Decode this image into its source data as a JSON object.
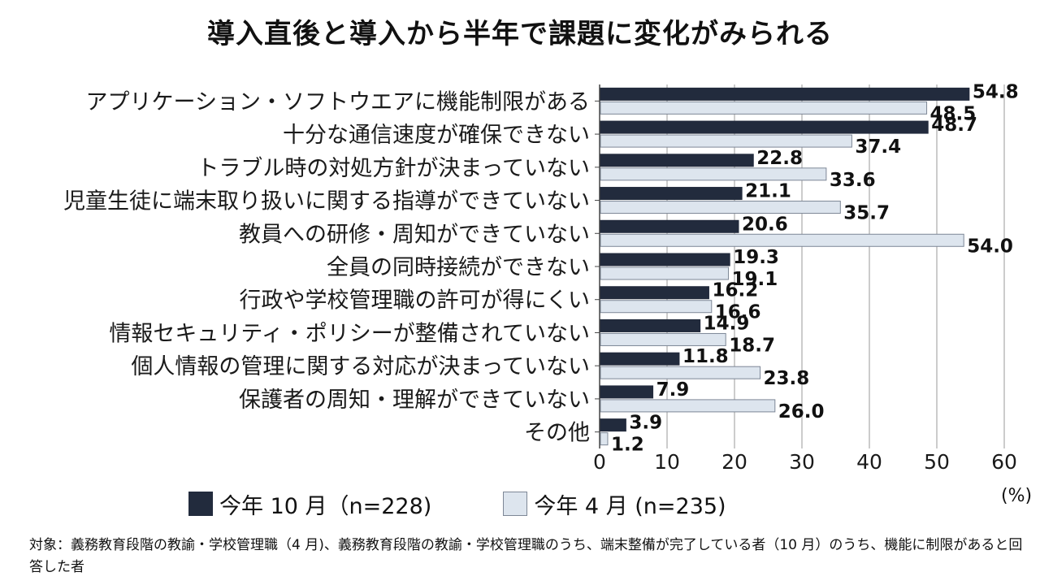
{
  "title": "導入直後と導入から半年で課題に変化がみられる",
  "chart_data": {
    "type": "bar",
    "orientation": "horizontal",
    "categories": [
      "アプリケーション・ソフトウエアに機能制限がある",
      "十分な通信速度が確保できない",
      "トラブル時の対処方針が決まっていない",
      "児童生徒に端末取り扱いに関する指導ができていない",
      "教員への研修・周知ができていない",
      "全員の同時接続ができない",
      "行政や学校管理職の許可が得にくい",
      "情報セキュリティ・ポリシーが整備されていない",
      "個人情報の管理に関する対応が決まっていない",
      "保護者の周知・理解ができていない",
      "その他"
    ],
    "series": [
      {
        "name": "今年 10 月（n=228)",
        "color": "#222b3d",
        "values": [
          54.8,
          48.7,
          22.8,
          21.1,
          20.6,
          19.3,
          16.2,
          14.9,
          11.8,
          7.9,
          3.9
        ],
        "value_labels": [
          "54.8",
          "48.7",
          "22.8",
          "21.1",
          "20.6",
          "19.3",
          "16.2",
          "14.9",
          "11.8",
          "7.9",
          "3.9"
        ]
      },
      {
        "name": "今年 4 月 (n=235)",
        "color": "#dde5ee",
        "values": [
          48.5,
          37.4,
          33.6,
          35.7,
          54.0,
          19.1,
          16.6,
          18.7,
          23.8,
          26.0,
          1.2
        ],
        "value_labels": [
          "48.5",
          "37.4",
          "33.6",
          "35.7",
          "54.0",
          "19.1",
          "16.6",
          "18.7",
          "23.8",
          "26.0",
          "1.2"
        ]
      }
    ],
    "xlim": [
      0,
      60
    ],
    "xticks": [
      "0",
      "10",
      "20",
      "30",
      "40",
      "50",
      "60"
    ],
    "unit": "(%)",
    "grid": "vertical"
  },
  "note": "対象：義務教育段階の教諭・学校管理職（4 月)、義務教育段階の教諭・学校管理職のうち、端末整備が完了している者（10 月）のうち、機能に制限があると回答した者"
}
